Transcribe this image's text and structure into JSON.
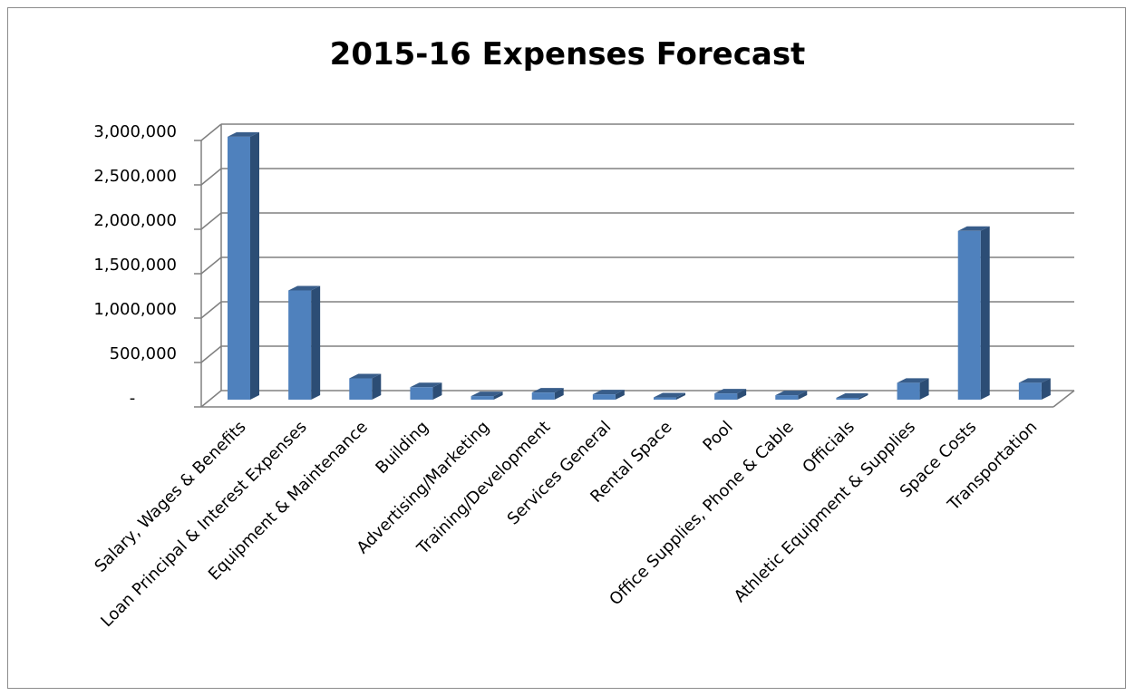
{
  "chart_data": {
    "type": "bar",
    "title": "2015-16 Expenses Forecast",
    "xlabel": "",
    "ylabel": "",
    "ylim": [
      0,
      3000000
    ],
    "y_ticks": [
      0,
      500000,
      1000000,
      1500000,
      2000000,
      2500000,
      3000000
    ],
    "y_tick_labels": [
      "-",
      "500,000",
      "1,000,000",
      "1,500,000",
      "2,000,000",
      "2,500,000",
      "3,000,000"
    ],
    "grid": true,
    "legend": "none",
    "style": "3d-clustered-column",
    "categories": [
      "Salary, Wages & Benefits",
      "Loan Principal & Interest Expenses",
      "Equipment & Maintenance",
      "Building",
      "Advertising/Marketing",
      "Training/Development",
      "Services General",
      "Rental Space",
      "Pool",
      "Office Supplies, Phone & Cable",
      "Officials",
      "Athletic Equipment & Supplies",
      "Space Costs",
      "Transportation"
    ],
    "values": [
      2960000,
      1230000,
      240000,
      140000,
      40000,
      80000,
      60000,
      25000,
      70000,
      50000,
      20000,
      190000,
      1900000,
      190000
    ],
    "colors": {
      "bar_front": "#4f81bd",
      "bar_side": "#2c4d75",
      "bar_top": "#385d8a",
      "grid": "#808080",
      "axis": "#808080"
    }
  }
}
